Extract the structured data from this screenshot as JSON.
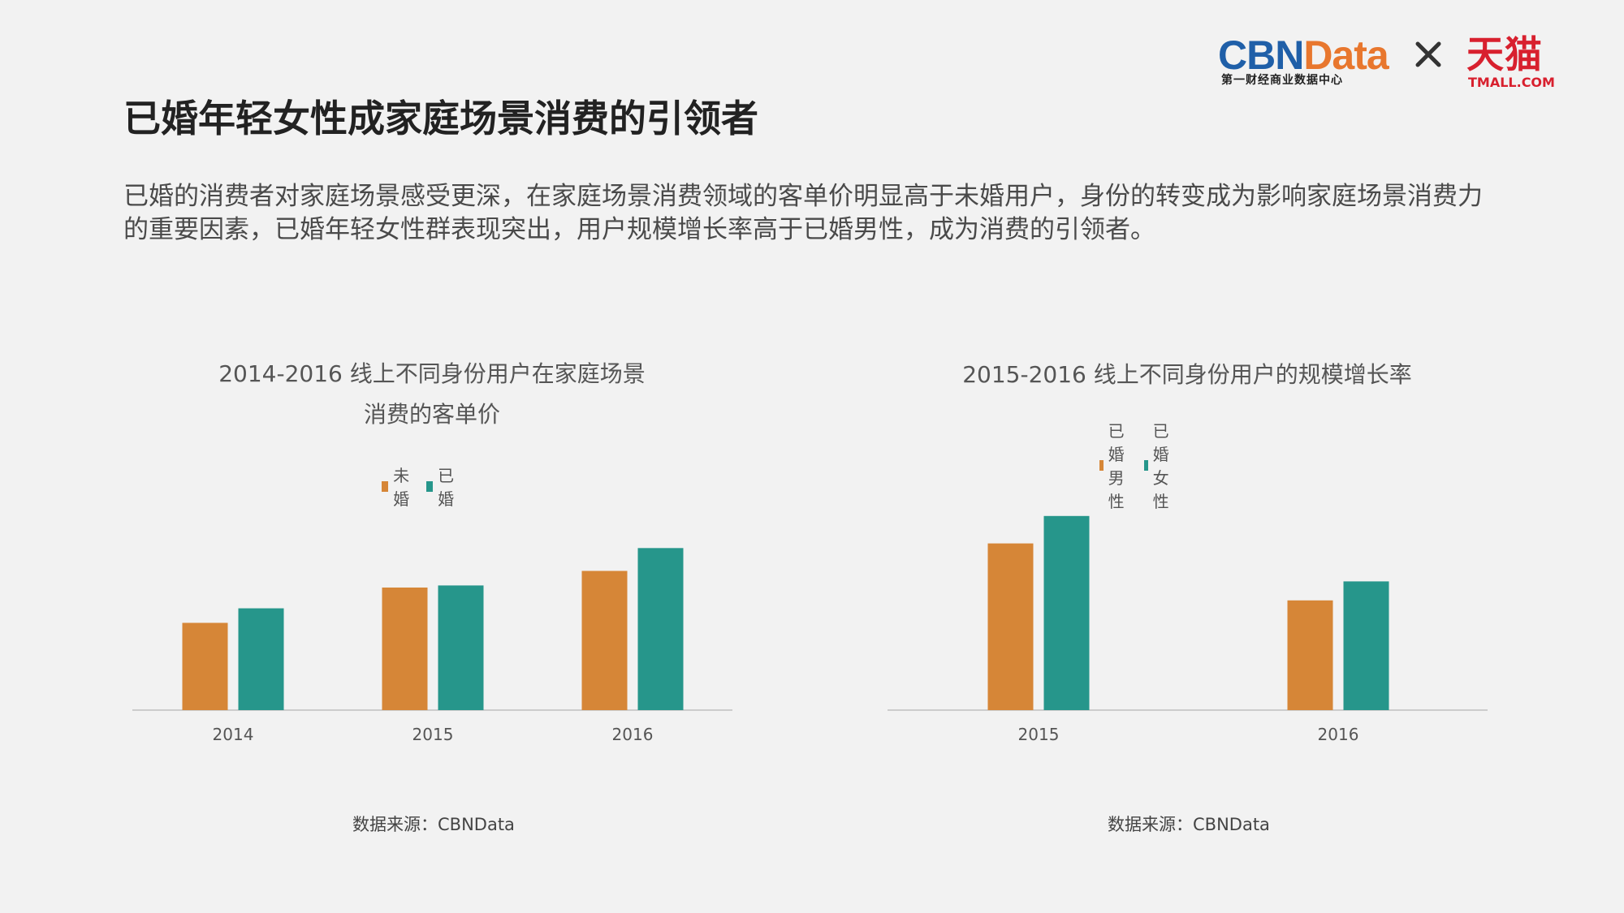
{
  "page": {
    "title": "已婚年轻女性成家庭场景消费的引领者",
    "summary": "已婚的消费者对家庭场景感受更深，在家庭场景消费领域的客单价明显高于未婚用户，身份的转变成为影响家庭场景消费力的重要因素，已婚年轻女性群表现突出，用户规模增长率高于已婚男性，成为消费的引领者。"
  },
  "logos": {
    "cbn_part1": "CBN",
    "cbn_part2": "Data",
    "cbn_sub": "第一财经商业数据中心",
    "times": "×",
    "tmall_main": "天猫",
    "tmall_sub": "TMALL.COM"
  },
  "colors": {
    "orange": "#d68637",
    "teal": "#26968b",
    "axis": "#cccccc"
  },
  "chart_data": [
    {
      "type": "bar",
      "title_line1": "2014-2016 线上不同身份用户在家庭场景",
      "title_line2": "消费的客单价",
      "categories": [
        "2014",
        "2015",
        "2016"
      ],
      "series": [
        {
          "name": "未婚",
          "values": [
            42,
            59,
            67
          ]
        },
        {
          "name": "已婚",
          "values": [
            49,
            60,
            78
          ]
        }
      ],
      "ylim": [
        0,
        100
      ],
      "grid": false,
      "legend_position": "top-center",
      "source": "数据来源：CBNData"
    },
    {
      "type": "bar",
      "title_line1": "2015-2016 线上不同身份用户的规模增长率",
      "title_line2": "",
      "categories": [
        "2015",
        "2016"
      ],
      "series": [
        {
          "name": "已婚男性",
          "values": [
            79,
            52
          ]
        },
        {
          "name": "已婚女性",
          "values": [
            92,
            61
          ]
        }
      ],
      "ylim": [
        0,
        100
      ],
      "grid": false,
      "legend_position": "top-center",
      "source": "数据来源：CBNData"
    }
  ]
}
